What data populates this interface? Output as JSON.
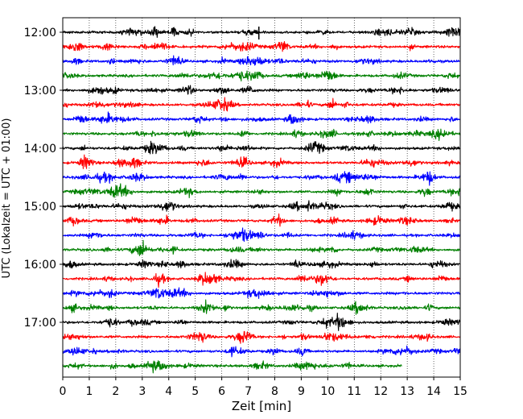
{
  "chart_data": {
    "type": "line",
    "title": "",
    "xlabel": "Zeit  [min]",
    "ylabel": "UTC (Lokalzeit = UTC + 01:00)",
    "xlim": [
      0,
      15
    ],
    "x_ticks": [
      "0",
      "1",
      "2",
      "3",
      "4",
      "5",
      "6",
      "7",
      "8",
      "9",
      "10",
      "11",
      "12",
      "13",
      "14",
      "15"
    ],
    "y_ticks": [
      "12:00",
      "13:00",
      "14:00",
      "15:00",
      "16:00",
      "17:00"
    ],
    "grid": "vertical dotted",
    "trace_interval_min": 15,
    "first_trace": "12:00",
    "color_cycle": [
      "#000000",
      "#ff0000",
      "#0000ff",
      "#008000"
    ],
    "series": [
      {
        "start": "12:00",
        "values": [
          0,
          15
        ]
      },
      {
        "start": "12:15",
        "values": [
          0,
          15
        ]
      },
      {
        "start": "12:30",
        "values": [
          0,
          15
        ]
      },
      {
        "start": "12:45",
        "values": [
          0,
          15
        ]
      },
      {
        "start": "13:00",
        "values": [
          0,
          15
        ]
      },
      {
        "start": "13:15",
        "values": [
          0,
          15
        ]
      },
      {
        "start": "13:30",
        "values": [
          0,
          15
        ]
      },
      {
        "start": "13:45",
        "values": [
          0,
          15
        ]
      },
      {
        "start": "14:00",
        "values": [
          0,
          15
        ]
      },
      {
        "start": "14:15",
        "values": [
          0,
          15
        ]
      },
      {
        "start": "14:30",
        "values": [
          0,
          15
        ]
      },
      {
        "start": "14:45",
        "values": [
          0,
          15
        ]
      },
      {
        "start": "15:00",
        "values": [
          0,
          15
        ]
      },
      {
        "start": "15:15",
        "values": [
          0,
          15
        ]
      },
      {
        "start": "15:30",
        "values": [
          0,
          15
        ]
      },
      {
        "start": "15:45",
        "values": [
          0,
          15
        ]
      },
      {
        "start": "16:00",
        "values": [
          0,
          15
        ]
      },
      {
        "start": "16:15",
        "values": [
          0,
          15
        ]
      },
      {
        "start": "16:30",
        "values": [
          0,
          15
        ]
      },
      {
        "start": "16:45",
        "values": [
          0,
          15
        ]
      },
      {
        "start": "17:00",
        "values": [
          0,
          15
        ]
      },
      {
        "start": "17:15",
        "values": [
          0,
          15
        ]
      },
      {
        "start": "17:30",
        "values": [
          0,
          15
        ]
      },
      {
        "start": "17:45",
        "values": [
          0,
          12.8
        ]
      }
    ]
  }
}
